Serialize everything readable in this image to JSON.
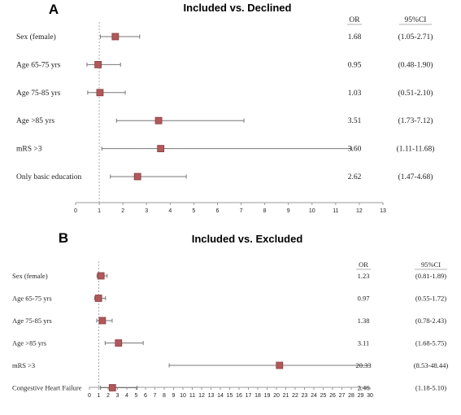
{
  "chart_data": [
    {
      "type": "forest",
      "panel": "A",
      "title": "Included vs. Declined",
      "columns": {
        "or": "OR",
        "ci": "95%CI"
      },
      "xlim": [
        0,
        13
      ],
      "xticks": [
        "0",
        "1",
        "2",
        "3",
        "4",
        "5",
        "6",
        "7",
        "8",
        "9",
        "10",
        "11",
        "12",
        "13"
      ],
      "reference_line": 1,
      "rows": [
        {
          "label": "Sex (female)",
          "or": 1.68,
          "lo": 1.05,
          "hi": 2.71,
          "or_text": "1.68",
          "ci_text": "(1.05-2.71)"
        },
        {
          "label": "Age 65-75 yrs",
          "or": 0.95,
          "lo": 0.48,
          "hi": 1.9,
          "or_text": "0.95",
          "ci_text": "(0.48-1.90)"
        },
        {
          "label": "Age 75-85 yrs",
          "or": 1.03,
          "lo": 0.51,
          "hi": 2.1,
          "or_text": "1.03",
          "ci_text": "(0.51-2.10)"
        },
        {
          "label": "Age >85 yrs",
          "or": 3.51,
          "lo": 1.73,
          "hi": 7.12,
          "or_text": "3.51",
          "ci_text": "(1.73-7.12)"
        },
        {
          "label": "mRS >3",
          "or": 3.6,
          "lo": 1.11,
          "hi": 11.68,
          "or_text": "3.60",
          "ci_text": "(1.11-11.68)"
        },
        {
          "label": "Only basic education",
          "or": 2.62,
          "lo": 1.47,
          "hi": 4.68,
          "or_text": "2.62",
          "ci_text": "(1.47-4.68)"
        }
      ]
    },
    {
      "type": "forest",
      "panel": "B",
      "title": "Included vs. Excluded",
      "columns": {
        "or": "OR",
        "ci": "95%CI"
      },
      "xlim": [
        0,
        30
      ],
      "xticks": [
        "0",
        "1",
        "2",
        "3",
        "4",
        "5",
        "6",
        "7",
        "8",
        "9",
        "10",
        "11",
        "12",
        "13",
        "14",
        "15",
        "16",
        "17",
        "18",
        "19",
        "20",
        "21",
        "22",
        "23",
        "24",
        "25",
        "26",
        "27",
        "28",
        "29",
        "30"
      ],
      "reference_line": 1,
      "rows": [
        {
          "label": "Sex (female)",
          "or": 1.23,
          "lo": 0.81,
          "hi": 1.89,
          "or_text": "1.23",
          "ci_text": "(0.81-1.89)"
        },
        {
          "label": "Age 65-75 yrs",
          "or": 0.97,
          "lo": 0.55,
          "hi": 1.72,
          "or_text": "0.97",
          "ci_text": "(0.55-1.72)"
        },
        {
          "label": "Age 75-85 yrs",
          "or": 1.38,
          "lo": 0.78,
          "hi": 2.43,
          "or_text": "1.38",
          "ci_text": "(0.78-2.43)"
        },
        {
          "label": "Age >85 yrs",
          "or": 3.11,
          "lo": 1.68,
          "hi": 5.75,
          "or_text": "3.11",
          "ci_text": "(1.68-5.75)"
        },
        {
          "label": "mRS >3",
          "or": 20.33,
          "lo": 8.53,
          "hi": 48.44,
          "or_text": "20.33",
          "ci_text": "(8.53-48.44)"
        },
        {
          "label": "Congestive Heart Failure",
          "or": 2.46,
          "lo": 1.18,
          "hi": 5.1,
          "or_text": "2.46",
          "ci_text": "(1.18-5.10)"
        }
      ]
    }
  ],
  "colors": {
    "marker_fill": "#b0585a",
    "marker_stroke": "#8a3e40",
    "ci_line": "#777777",
    "axis": "#9a9a9a",
    "reference_line": "#aaaaaa"
  }
}
